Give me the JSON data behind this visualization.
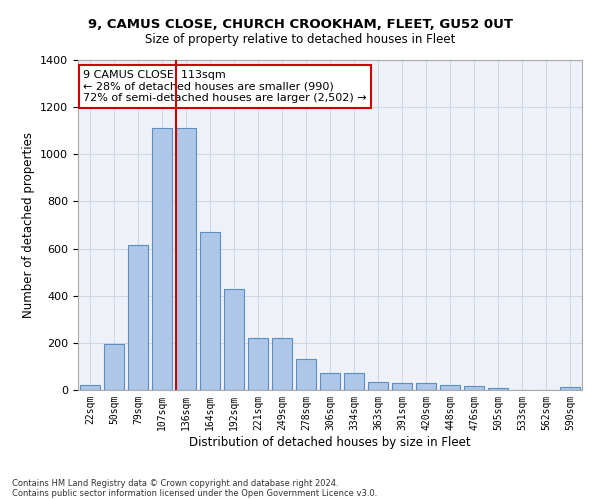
{
  "title": "9, CAMUS CLOSE, CHURCH CROOKHAM, FLEET, GU52 0UT",
  "subtitle": "Size of property relative to detached houses in Fleet",
  "xlabel": "Distribution of detached houses by size in Fleet",
  "ylabel": "Number of detached properties",
  "footnote1": "Contains HM Land Registry data © Crown copyright and database right 2024.",
  "footnote2": "Contains public sector information licensed under the Open Government Licence v3.0.",
  "categories": [
    "22sqm",
    "50sqm",
    "79sqm",
    "107sqm",
    "136sqm",
    "164sqm",
    "192sqm",
    "221sqm",
    "249sqm",
    "278sqm",
    "306sqm",
    "334sqm",
    "363sqm",
    "391sqm",
    "420sqm",
    "448sqm",
    "476sqm",
    "505sqm",
    "533sqm",
    "562sqm",
    "590sqm"
  ],
  "values": [
    20,
    195,
    615,
    1110,
    1110,
    670,
    430,
    220,
    220,
    130,
    73,
    73,
    33,
    30,
    28,
    20,
    15,
    10,
    0,
    0,
    12
  ],
  "bar_color": "#aec6e8",
  "bar_edge_color": "#5a8fc2",
  "grid_color": "#d0d8e8",
  "background_color": "#eef2f8",
  "vline_color": "#cc0000",
  "vline_x_index": 3.57,
  "annotation_text": "9 CAMUS CLOSE: 113sqm\n← 28% of detached houses are smaller (990)\n72% of semi-detached houses are larger (2,502) →",
  "annotation_box_color": "#ffffff",
  "annotation_box_edge": "#cc0000",
  "ylim": [
    0,
    1400
  ],
  "yticks": [
    0,
    200,
    400,
    600,
    800,
    1000,
    1200,
    1400
  ]
}
